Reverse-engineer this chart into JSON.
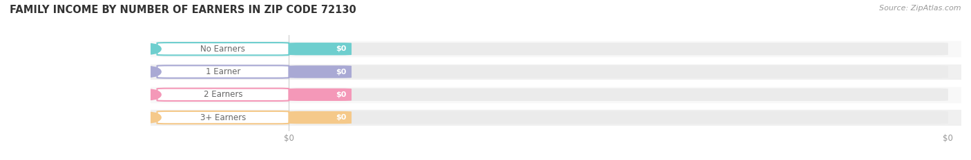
{
  "title": "FAMILY INCOME BY NUMBER OF EARNERS IN ZIP CODE 72130",
  "source_text": "Source: ZipAtlas.com",
  "categories": [
    "No Earners",
    "1 Earner",
    "2 Earners",
    "3+ Earners"
  ],
  "values": [
    0,
    0,
    0,
    0
  ],
  "bar_colors": [
    "#6ecece",
    "#a9a9d4",
    "#f498b8",
    "#f5c98a"
  ],
  "bar_bg_color": "#ebebeb",
  "row_bg_even": "#f8f8f8",
  "row_bg_odd": "#f0f0f0",
  "background_color": "#ffffff",
  "title_fontsize": 10.5,
  "label_fontsize": 8.5,
  "value_fontsize": 8.0,
  "source_fontsize": 8.0,
  "tick_label_color": "#999999",
  "title_color": "#333333",
  "label_text_color": "#666666",
  "value_text_color": "#ffffff",
  "source_color": "#999999"
}
